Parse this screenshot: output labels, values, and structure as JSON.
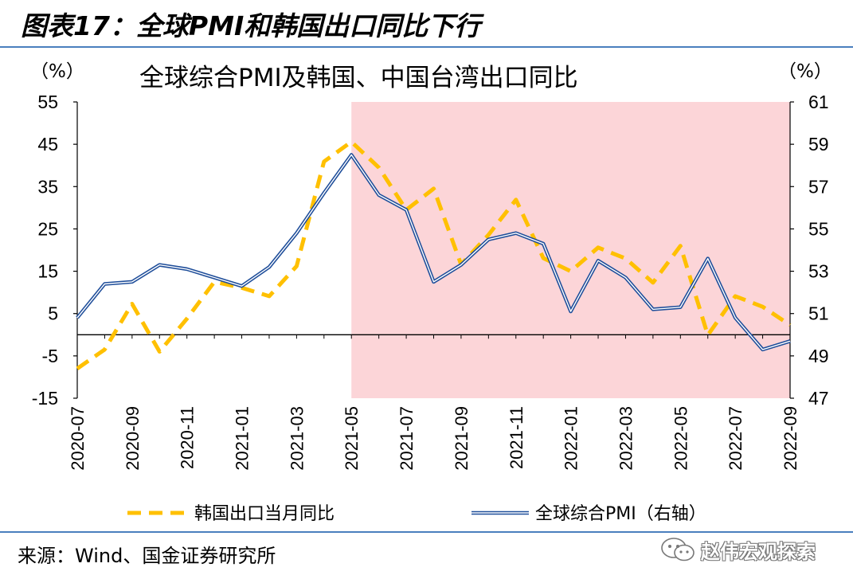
{
  "figure": {
    "title": "图表17：全球PMI和韩国出口同比下行",
    "source": "来源：Wind、国金证券研究所",
    "watermark": "赵伟宏观探索"
  },
  "chart_data": {
    "type": "line",
    "title": "全球综合PMI及韩国、中国台湾出口同比",
    "y_left_unit": "（%）",
    "y_right_unit": "（%）",
    "ylim_left": [
      -15,
      55
    ],
    "yticks_left": [
      55,
      45,
      35,
      25,
      15,
      5,
      -5,
      -15
    ],
    "ylim_right": [
      47,
      61
    ],
    "yticks_right": [
      61,
      59,
      57,
      55,
      53,
      51,
      49,
      47
    ],
    "x": [
      "2020-07",
      "2020-08",
      "2020-09",
      "2020-10",
      "2020-11",
      "2020-12",
      "2021-01",
      "2021-02",
      "2021-03",
      "2021-04",
      "2021-05",
      "2021-06",
      "2021-07",
      "2021-08",
      "2021-09",
      "2021-10",
      "2021-11",
      "2021-12",
      "2022-01",
      "2022-02",
      "2022-03",
      "2022-04",
      "2022-05",
      "2022-06",
      "2022-07",
      "2022-08",
      "2022-09"
    ],
    "x_tick_labels": [
      "2020-07",
      "2020-09",
      "2020-11",
      "2021-01",
      "2021-03",
      "2021-05",
      "2021-07",
      "2021-09",
      "2021-11",
      "2022-01",
      "2022-03",
      "2022-05",
      "2022-07",
      "2022-09"
    ],
    "shaded_region": {
      "from": "2021-05",
      "to": "2022-09",
      "color": "#fcd5d8"
    },
    "series": [
      {
        "name": "韩国出口当月同比",
        "axis": "left",
        "style": "dashed",
        "color": "#ffc000",
        "values": [
          -8.0,
          -3.5,
          7.3,
          -4.0,
          3.8,
          12.5,
          11.1,
          9.1,
          16.2,
          40.9,
          45.6,
          39.5,
          29.5,
          34.5,
          16.6,
          23.6,
          31.9,
          18.1,
          15.0,
          20.6,
          18.0,
          12.3,
          21.0,
          -0.1,
          9.1,
          6.6,
          2.3
        ]
      },
      {
        "name": "全球综合PMI（右轴）",
        "axis": "right",
        "style": "double-line",
        "color": "#1f4e9a",
        "values": [
          50.8,
          52.4,
          52.5,
          53.3,
          53.1,
          52.7,
          52.3,
          53.2,
          54.8,
          56.7,
          58.5,
          56.6,
          55.9,
          52.5,
          53.3,
          54.5,
          54.8,
          54.3,
          51.1,
          53.5,
          52.7,
          51.2,
          51.3,
          53.6,
          50.8,
          49.3,
          49.7
        ]
      }
    ],
    "zero_line": 0,
    "legend_position": "bottom"
  }
}
